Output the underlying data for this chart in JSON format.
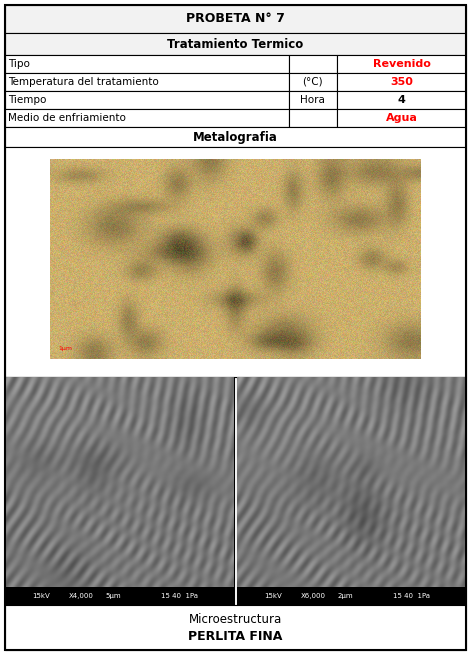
{
  "title": "PROBETA N° 7",
  "section1_title": "Tratamiento Termico",
  "rows": [
    {
      "label": "Tipo",
      "unit": "",
      "value": "Revenido",
      "value_color": "#ff0000"
    },
    {
      "label": "Temperatura del tratamiento",
      "unit": "(°C)",
      "value": "350",
      "value_color": "#ff0000"
    },
    {
      "label": "Tiempo",
      "unit": "Hora",
      "value": "4",
      "value_color": "#000000"
    },
    {
      "label": "Medio de enfriamiento",
      "unit": "",
      "value": "Agua",
      "value_color": "#ff0000"
    }
  ],
  "metalografia_label": "Metalografia",
  "microestructura_label": "Microestructura",
  "microestructura_value": "PERLITA FINA",
  "sem_left_label": "15kV   X4,000   5μm          15 40  1Pa",
  "sem_right_label": "15kV   X6,000   2μm          15 40  1Pa",
  "bg_color": "#ffffff",
  "border_color": "#000000"
}
